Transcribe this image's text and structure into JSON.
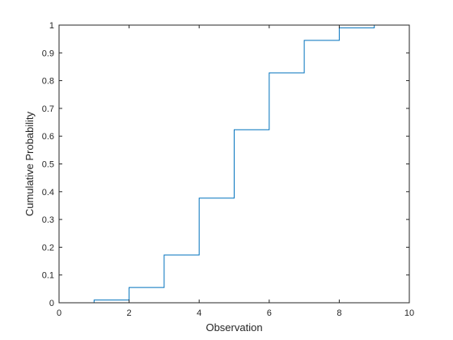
{
  "chart_data": {
    "type": "line",
    "plot_style": "stairs",
    "title": "",
    "xlabel": "Observation",
    "ylabel": "Cumulative Probability",
    "xlim": [
      0,
      10
    ],
    "ylim": [
      0,
      1
    ],
    "xticks": [
      0,
      2,
      4,
      6,
      8,
      10
    ],
    "yticks": [
      0,
      0.1,
      0.2,
      0.3,
      0.4,
      0.5,
      0.6,
      0.7,
      0.8,
      0.9,
      1
    ],
    "xtick_labels": [
      "0",
      "2",
      "4",
      "6",
      "8",
      "10"
    ],
    "ytick_labels": [
      "0",
      "0.1",
      "0.2",
      "0.3",
      "0.4",
      "0.5",
      "0.6",
      "0.7",
      "0.8",
      "0.9",
      "1"
    ],
    "grid": false,
    "line_color": "#0072BD",
    "series": [
      {
        "x": [
          0,
          1,
          2,
          3,
          4,
          5,
          6,
          7,
          8,
          9,
          10
        ],
        "y": [
          0,
          0.01,
          0.055,
          0.172,
          0.377,
          0.623,
          0.828,
          0.945,
          0.99,
          1,
          1
        ]
      }
    ]
  }
}
